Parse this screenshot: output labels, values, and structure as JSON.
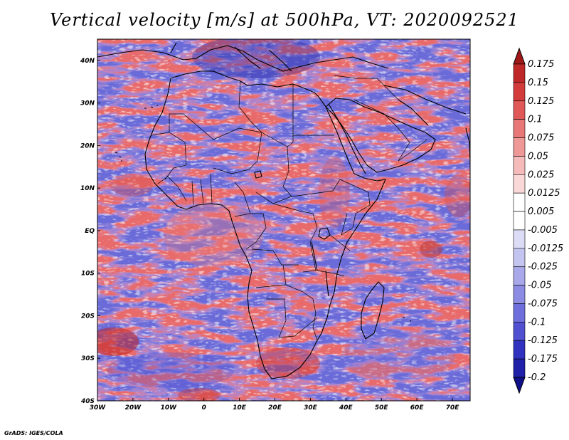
{
  "title": "Vertical velocity [m/s] at 500hPa, VT: 2020092521",
  "footer": "GrADS: IGES/COLA",
  "map": {
    "region": "Africa, Arabian Peninsula and western Indian Ocean",
    "lon_range": [
      -30,
      75
    ],
    "lat_range": [
      -40,
      45
    ]
  },
  "axes": {
    "x_ticks": [
      {
        "label": "30W",
        "lon": -30
      },
      {
        "label": "20W",
        "lon": -20
      },
      {
        "label": "10W",
        "lon": -10
      },
      {
        "label": "0",
        "lon": 0
      },
      {
        "label": "10E",
        "lon": 10
      },
      {
        "label": "20E",
        "lon": 20
      },
      {
        "label": "30E",
        "lon": 30
      },
      {
        "label": "40E",
        "lon": 40
      },
      {
        "label": "50E",
        "lon": 50
      },
      {
        "label": "60E",
        "lon": 60
      },
      {
        "label": "70E",
        "lon": 70
      }
    ],
    "y_ticks": [
      {
        "label": "40N",
        "lat": 40
      },
      {
        "label": "30N",
        "lat": 30
      },
      {
        "label": "20N",
        "lat": 20
      },
      {
        "label": "10N",
        "lat": 10
      },
      {
        "label": "EQ",
        "lat": 0
      },
      {
        "label": "10S",
        "lat": -10
      },
      {
        "label": "20S",
        "lat": -20
      },
      {
        "label": "30S",
        "lat": -30
      },
      {
        "label": "40S",
        "lat": -40
      }
    ]
  },
  "colorbar": {
    "labels": [
      "0.175",
      "0.15",
      "0.125",
      "0.1",
      "0.075",
      "0.05",
      "0.025",
      "0.0125",
      "0.005",
      "-0.005",
      "-0.0125",
      "-0.025",
      "-0.05",
      "-0.075",
      "-0.1",
      "-0.125",
      "-0.175",
      "-0.2"
    ],
    "colors": [
      "#a01818",
      "#bf2828",
      "#d43c3c",
      "#e05858",
      "#e87878",
      "#ef9898",
      "#f5baba",
      "#fad8d8",
      "#ffffff",
      "#ffffff",
      "#dcdcf6",
      "#c4c4f0",
      "#a8a8ea",
      "#8c8ce4",
      "#6e6edc",
      "#5050d0",
      "#3232c0",
      "#2020a8",
      "#101088"
    ]
  },
  "colors": {
    "positive": "#e56868",
    "negative": "#6e6edc",
    "coast": "#000000"
  }
}
